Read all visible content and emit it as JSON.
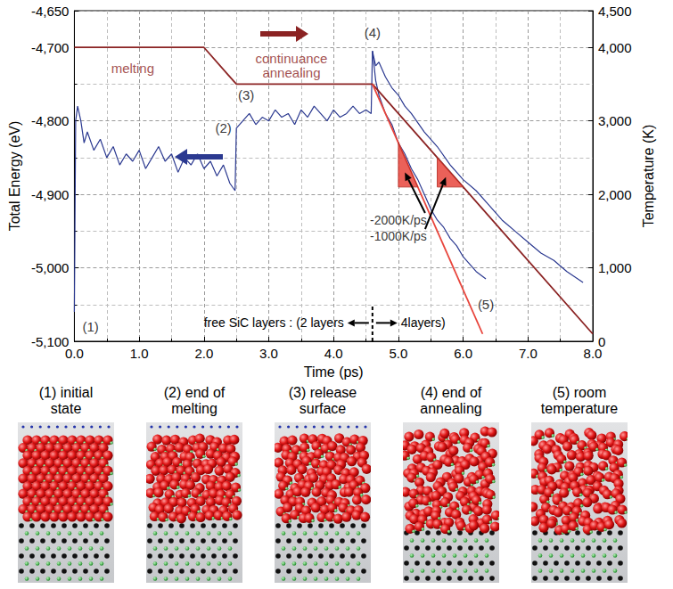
{
  "chart_data": {
    "type": "line",
    "xlabel": "Time (ps)",
    "ylabel": "Total Energy (eV)",
    "y2label": "Temperature (K)",
    "xlim": [
      0,
      8
    ],
    "xticks": [
      {
        "value": 0,
        "label": "0.0"
      },
      {
        "value": 1,
        "label": "1.0"
      },
      {
        "value": 2,
        "label": "2.0"
      },
      {
        "value": 3,
        "label": "3.0"
      },
      {
        "value": 4,
        "label": "4.0"
      },
      {
        "value": 5,
        "label": "5.0"
      },
      {
        "value": 6,
        "label": "6.0"
      },
      {
        "value": 7,
        "label": "7.0"
      },
      {
        "value": 8,
        "label": "8.0"
      }
    ],
    "ylim": [
      -5100,
      -4650
    ],
    "yticks": [
      -5100,
      -5000,
      -4900,
      -4800,
      -4700
    ],
    "y2lim": [
      0,
      4500
    ],
    "y2ticks": [
      0,
      1000,
      2000,
      3000,
      4000
    ],
    "grid": true,
    "series": [
      {
        "color": "#2b3990",
        "x": [
          0.0,
          0.02,
          0.05,
          0.1,
          0.15,
          0.2,
          0.3,
          0.4,
          0.5,
          0.6,
          0.7,
          0.8,
          0.9,
          1.0,
          1.1,
          1.2,
          1.3,
          1.4,
          1.5,
          1.6,
          1.7,
          1.8,
          1.9,
          2.0,
          2.1,
          2.2,
          2.3,
          2.4,
          2.48,
          2.5,
          2.6,
          2.7,
          2.8,
          2.9,
          3.0,
          3.1,
          3.2,
          3.3,
          3.4,
          3.5,
          3.6,
          3.7,
          3.8,
          3.9,
          4.0,
          4.1,
          4.2,
          4.3,
          4.4,
          4.5,
          4.58,
          4.6
        ],
        "values": [
          -5060,
          -4800,
          -4780,
          -4800,
          -4830,
          -4815,
          -4840,
          -4825,
          -4850,
          -4835,
          -4860,
          -4845,
          -4855,
          -4840,
          -4865,
          -4850,
          -4835,
          -4855,
          -4845,
          -4870,
          -4850,
          -4860,
          -4845,
          -4865,
          -4855,
          -4875,
          -4860,
          -4885,
          -4895,
          -4810,
          -4800,
          -4790,
          -4805,
          -4795,
          -4800,
          -4785,
          -4795,
          -4790,
          -4805,
          -4785,
          -4795,
          -4780,
          -4790,
          -4800,
          -4785,
          -4795,
          -4790,
          -4780,
          -4790,
          -4785,
          -4790,
          -4705
        ]
      },
      {
        "color": "#2b3990",
        "x": [
          4.6,
          4.65,
          4.7,
          4.8,
          4.9,
          5.0,
          5.1,
          5.2,
          5.4,
          5.6,
          5.8,
          6.0,
          6.2,
          6.4,
          6.6,
          6.8,
          7.0,
          7.2,
          7.4,
          7.6,
          7.85
        ],
        "values": [
          -4705,
          -4725,
          -4720,
          -4740,
          -4755,
          -4765,
          -4780,
          -4790,
          -4815,
          -4835,
          -4860,
          -4880,
          -4895,
          -4915,
          -4935,
          -4950,
          -4965,
          -4980,
          -4990,
          -5005,
          -5020
        ]
      },
      {
        "color": "#2b3990",
        "x": [
          4.6,
          4.65,
          4.7,
          4.8,
          4.9,
          5.0,
          5.1,
          5.2,
          5.3,
          5.4,
          5.5,
          5.6,
          5.7,
          5.8,
          5.9,
          6.0,
          6.1,
          6.2,
          6.35
        ],
        "values": [
          -4705,
          -4745,
          -4765,
          -4790,
          -4805,
          -4830,
          -4845,
          -4865,
          -4880,
          -4900,
          -4920,
          -4935,
          -4945,
          -4960,
          -4970,
          -4985,
          -4995,
          -5005,
          -5015
        ]
      },
      {
        "color": "#8b2323",
        "axis": "y2",
        "x": [
          0,
          2.0,
          2.5,
          4.6,
          8.0
        ],
        "values": [
          4000,
          4000,
          3500,
          3500,
          100
        ]
      },
      {
        "color": "#e8453c",
        "axis": "y2",
        "x": [
          4.6,
          6.3
        ],
        "values": [
          3500,
          100
        ]
      }
    ],
    "annotations": [
      {
        "text": "(1)",
        "x": 0.25,
        "y": -5080
      },
      {
        "text": "(2)",
        "x": 2.3,
        "y": -4810
      },
      {
        "text": "(3)",
        "x": 2.65,
        "y": -4765
      },
      {
        "text": "(4)",
        "x": 4.6,
        "y": -4680
      },
      {
        "text": "(5)",
        "x": 6.35,
        "y": -5050
      },
      {
        "text": "melting",
        "x": 0.9,
        "y": 3720,
        "axis": "y2",
        "color": "#8b2323"
      },
      {
        "text": "continuance",
        "x": 3.35,
        "y": 3850,
        "axis": "y2",
        "color": "#8b2323"
      },
      {
        "text": "annealing",
        "x": 3.35,
        "y": 3660,
        "axis": "y2",
        "color": "#8b2323"
      }
    ],
    "slope_marks": [
      {
        "label": "-2000K/ps",
        "x": 5.0,
        "y": 1650,
        "axis": "y2",
        "color": "#e8453c",
        "triangle": [
          [
            5.0,
            2700
          ],
          [
            5.3,
            2100
          ],
          [
            5.0,
            2100
          ]
        ]
      },
      {
        "label": "-1000K/ps",
        "x": 5.0,
        "y": 1430,
        "axis": "y2",
        "color": "#e8453c",
        "triangle": [
          [
            5.6,
            2500
          ],
          [
            6.0,
            2100
          ],
          [
            5.6,
            2100
          ]
        ]
      }
    ],
    "divider": {
      "x": 4.6,
      "y_from": -5100,
      "y_to": -5050,
      "text_y": -5075,
      "left_text": "free SiC layers : (2 layers",
      "right_text": "4layers)"
    }
  },
  "snapshots": [
    {
      "lines": [
        "(1) initial",
        "state"
      ]
    },
    {
      "lines": [
        "(2) end of",
        "melting"
      ]
    },
    {
      "lines": [
        "(3) release",
        "surface"
      ]
    },
    {
      "lines": [
        "(4) end of",
        "annealing"
      ]
    },
    {
      "lines": [
        "(5) room",
        "temperature"
      ]
    }
  ]
}
